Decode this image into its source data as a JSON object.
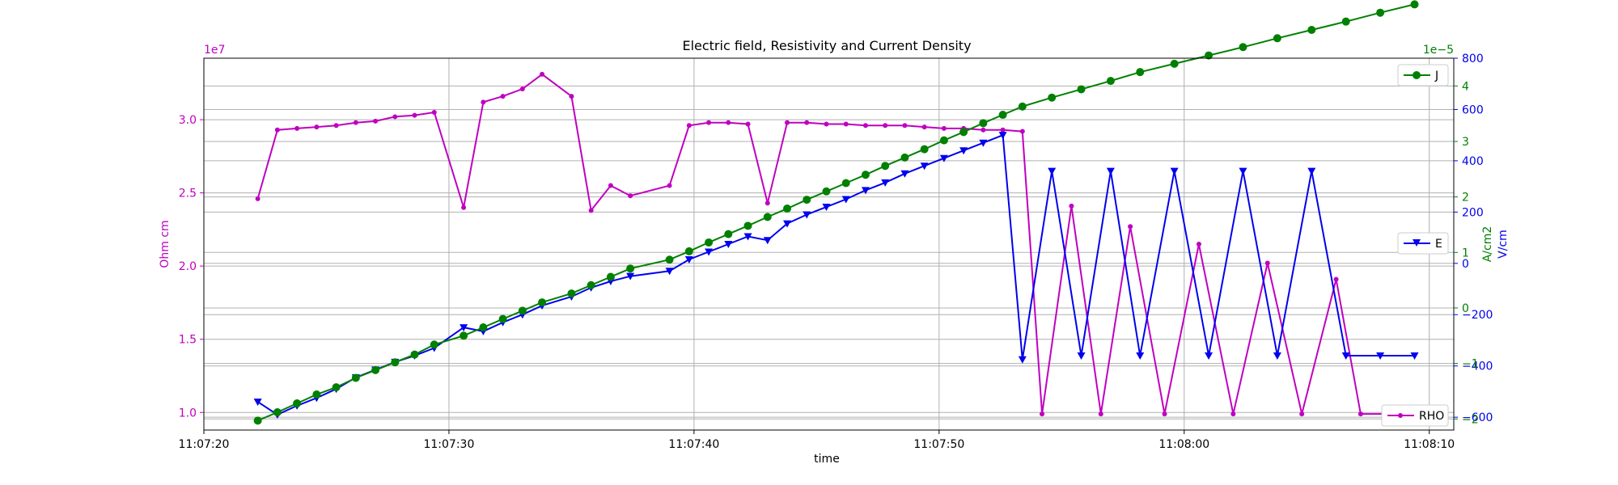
{
  "colors": {
    "rho": "#c000c0",
    "e": "#0000ee",
    "j": "#008000",
    "grid": "#b0b0b0",
    "axis": "#000000"
  },
  "chart_data": {
    "type": "line",
    "title": "Electric field, Resistivity and Current Density",
    "xlabel": "time",
    "x_ticks": [
      "11:07:20",
      "11:07:30",
      "11:07:40",
      "11:07:50",
      "11:08:00",
      "11:08:10"
    ],
    "xlim": [
      "11:07:20",
      "11:08:11"
    ],
    "grid": true,
    "axes": {
      "left": {
        "label": "Ohm cm",
        "offset_label": "1e7",
        "ylim": [
          0.88,
          3.42
        ],
        "ticks": [
          "1.0",
          "1.5",
          "2.0",
          "2.5",
          "3.0"
        ],
        "tick_values": [
          1.0,
          1.5,
          2.0,
          2.5,
          3.0
        ],
        "color": "#c000c0"
      },
      "right_v": {
        "label": "V/cm",
        "ylim": [
          -650,
          800
        ],
        "ticks": [
          "−600",
          "−400",
          "−200",
          "0",
          "200",
          "400",
          "600",
          "800"
        ],
        "tick_values": [
          -600,
          -400,
          -200,
          0,
          200,
          400,
          600,
          800
        ],
        "color": "#0000ee"
      },
      "right_a": {
        "label": "A/cm2",
        "offset_label": "1e−5",
        "ylim": [
          -2.2,
          4.5
        ],
        "ticks": [
          "−2",
          "−1",
          "0",
          "1",
          "2",
          "3",
          "4"
        ],
        "tick_values": [
          -2,
          -1,
          0,
          1,
          2,
          3,
          4
        ],
        "color": "#008000"
      }
    },
    "legends": [
      {
        "label": "J",
        "position": "top-right",
        "series": "J"
      },
      {
        "label": "E",
        "position": "center-right",
        "series": "E"
      },
      {
        "label": "RHO",
        "position": "bottom-right",
        "series": "RHO"
      }
    ],
    "series": [
      {
        "name": "RHO",
        "axis": "left",
        "marker": "dot",
        "x": [
          "11:07:22.2",
          "11:07:23.0",
          "11:07:23.8",
          "11:07:24.6",
          "11:07:25.4",
          "11:07:26.2",
          "11:07:27.0",
          "11:07:27.8",
          "11:07:28.6",
          "11:07:29.4",
          "11:07:30.6",
          "11:07:31.4",
          "11:07:32.2",
          "11:07:33.0",
          "11:07:33.8",
          "11:07:35.0",
          "11:07:35.8",
          "11:07:36.6",
          "11:07:37.4",
          "11:07:39.0",
          "11:07:39.8",
          "11:07:40.6",
          "11:07:41.4",
          "11:07:42.2",
          "11:07:43.0",
          "11:07:43.8",
          "11:07:44.6",
          "11:07:45.4",
          "11:07:46.2",
          "11:07:47.0",
          "11:07:47.8",
          "11:07:48.6",
          "11:07:49.4",
          "11:07:50.2",
          "11:07:51.0",
          "11:07:51.8",
          "11:07:52.6",
          "11:07:53.4",
          "11:07:54.2",
          "11:07:55.4",
          "11:07:56.6",
          "11:07:57.8",
          "11:07:59.2",
          "11:08:00.6",
          "11:08:02.0",
          "11:08:03.4",
          "11:08:04.8",
          "11:08:06.2",
          "11:08:07.2",
          "11:08:08.6"
        ],
        "values": [
          2.46,
          2.93,
          2.94,
          2.95,
          2.96,
          2.98,
          2.99,
          3.02,
          3.03,
          3.05,
          2.4,
          3.12,
          3.16,
          3.21,
          3.31,
          3.16,
          2.38,
          2.55,
          2.48,
          2.55,
          2.96,
          2.98,
          2.98,
          2.97,
          2.43,
          2.98,
          2.98,
          2.97,
          2.97,
          2.96,
          2.96,
          2.96,
          2.95,
          2.94,
          2.94,
          2.93,
          2.93,
          2.92,
          0.99,
          2.41,
          0.99,
          2.27,
          0.99,
          2.15,
          0.99,
          2.02,
          0.99,
          1.91,
          0.99,
          0.99
        ]
      },
      {
        "name": "E",
        "axis": "right_v",
        "marker": "triangle-down",
        "x": [
          "11:07:22.2",
          "11:07:23.0",
          "11:07:23.8",
          "11:07:24.6",
          "11:07:25.4",
          "11:07:26.2",
          "11:07:27.0",
          "11:07:27.8",
          "11:07:28.6",
          "11:07:29.4",
          "11:07:30.6",
          "11:07:31.4",
          "11:07:32.2",
          "11:07:33.0",
          "11:07:33.8",
          "11:07:35.0",
          "11:07:35.8",
          "11:07:36.6",
          "11:07:37.4",
          "11:07:39.0",
          "11:07:39.8",
          "11:07:40.6",
          "11:07:41.4",
          "11:07:42.2",
          "11:07:43.0",
          "11:07:43.8",
          "11:07:44.6",
          "11:07:45.4",
          "11:07:46.2",
          "11:07:47.0",
          "11:07:47.8",
          "11:07:48.6",
          "11:07:49.4",
          "11:07:50.2",
          "11:07:51.0",
          "11:07:51.8",
          "11:07:52.6",
          "11:07:53.4",
          "11:07:54.6",
          "11:07:55.8",
          "11:07:57.0",
          "11:07:58.2",
          "11:07:59.6",
          "11:08:01.0",
          "11:08:02.4",
          "11:08:03.8",
          "11:08:05.2",
          "11:08:06.6",
          "11:08:08.0",
          "11:08:09.4"
        ],
        "values": [
          -540,
          -590,
          -555,
          -525,
          -490,
          -445,
          -415,
          -385,
          -360,
          -330,
          -250,
          -265,
          -230,
          -200,
          -165,
          -130,
          -95,
          -70,
          -50,
          -30,
          15,
          45,
          75,
          105,
          90,
          155,
          190,
          220,
          250,
          285,
          315,
          350,
          380,
          410,
          440,
          470,
          500,
          -375,
          360,
          -360,
          360,
          -360,
          360,
          -360,
          360,
          -360,
          360,
          -360,
          -360,
          -360
        ]
      },
      {
        "name": "J",
        "axis": "right_a",
        "marker": "circle",
        "x": [
          "11:07:22.2",
          "11:07:23.0",
          "11:07:23.8",
          "11:07:24.6",
          "11:07:25.4",
          "11:07:26.2",
          "11:07:27.0",
          "11:07:27.8",
          "11:07:28.6",
          "11:07:29.4",
          "11:07:30.6",
          "11:07:31.4",
          "11:07:32.2",
          "11:07:33.0",
          "11:07:33.8",
          "11:07:35.0",
          "11:07:35.8",
          "11:07:36.6",
          "11:07:37.4",
          "11:07:39.0",
          "11:07:39.8",
          "11:07:40.6",
          "11:07:41.4",
          "11:07:42.2",
          "11:07:43.0",
          "11:07:43.8",
          "11:07:44.6",
          "11:07:45.4",
          "11:07:46.2",
          "11:07:47.0",
          "11:07:47.8",
          "11:07:48.6",
          "11:07:49.4",
          "11:07:50.2",
          "11:07:51.0",
          "11:07:51.8",
          "11:07:52.6",
          "11:07:53.4",
          "11:07:54.6",
          "11:07:55.8",
          "11:07:57.0",
          "11:07:58.2",
          "11:07:59.6",
          "11:08:01.0",
          "11:08:02.4",
          "11:08:03.8",
          "11:08:05.2",
          "11:08:06.6",
          "11:08:08.0",
          "11:08:09.4"
        ],
        "values": [
          -2.03,
          -1.88,
          -1.72,
          -1.56,
          -1.43,
          -1.26,
          -1.12,
          -0.98,
          -0.84,
          -0.66,
          -0.5,
          -0.35,
          -0.2,
          -0.05,
          0.1,
          0.26,
          0.41,
          0.56,
          0.71,
          0.87,
          1.02,
          1.18,
          1.33,
          1.48,
          1.64,
          1.79,
          1.95,
          2.1,
          2.25,
          2.4,
          2.56,
          2.71,
          2.86,
          3.02,
          3.17,
          3.33,
          3.48,
          3.63,
          3.79,
          3.94,
          4.09,
          4.25,
          4.4,
          4.55,
          4.7,
          4.86,
          5.01,
          5.16,
          5.32,
          5.47
        ]
      }
    ]
  }
}
